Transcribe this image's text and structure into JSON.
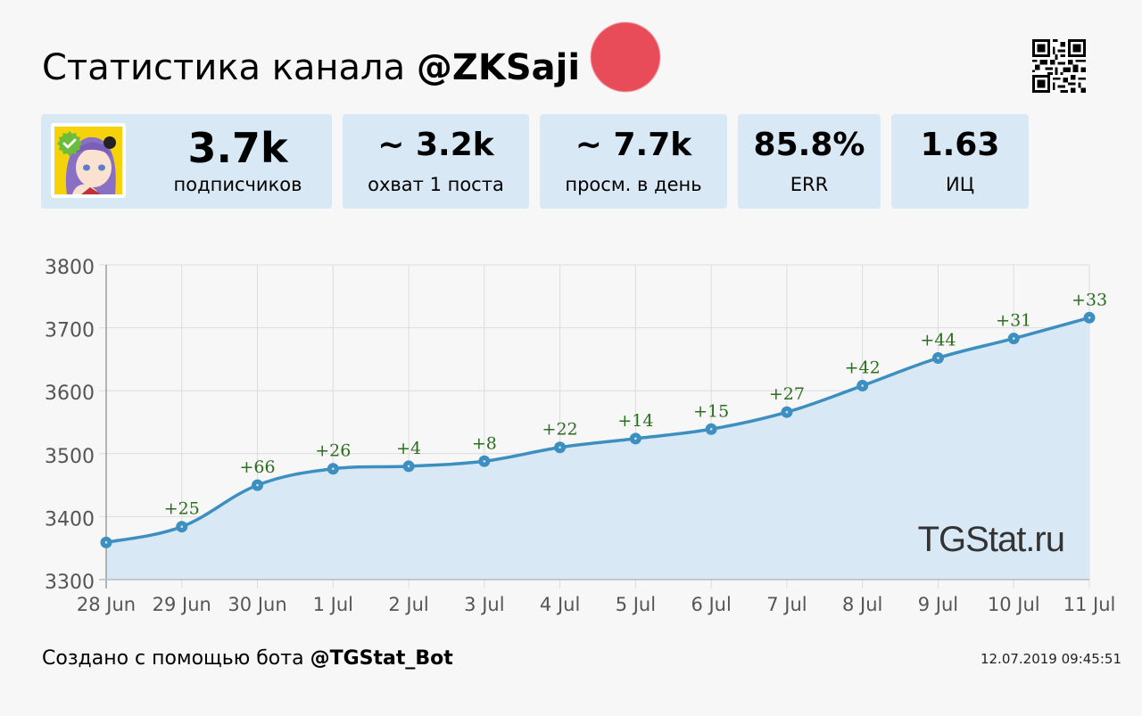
{
  "header": {
    "title_prefix": "Статистика канала ",
    "channel": "@ZKSaji",
    "qr_icon": "qr-code-icon"
  },
  "stats": [
    {
      "value": "3.7k",
      "label": "подписчиков"
    },
    {
      "value": "~ 3.2k",
      "label": "охват 1 поста"
    },
    {
      "value": "~ 7.7k",
      "label": "просм. в день"
    },
    {
      "value": "85.8%",
      "label": "ERR"
    },
    {
      "value": "1.63",
      "label": "ИЦ"
    }
  ],
  "colors": {
    "card_bg": "#d8e8f5",
    "line": "#3d8fc0",
    "area": "#d8e8f5",
    "delta_text": "#2a6e1e",
    "verified_badge": "#6cbd3c"
  },
  "chart_data": {
    "type": "area",
    "title": "",
    "xlabel": "",
    "ylabel": "",
    "ylim": [
      3300,
      3800
    ],
    "yticks": [
      "3800",
      "3700",
      "3600",
      "3500",
      "3400",
      "3300"
    ],
    "grid": true,
    "categories": [
      "28 Jun",
      "29 Jun",
      "30 Jun",
      "1 Jul",
      "2 Jul",
      "3 Jul",
      "4 Jul",
      "5 Jul",
      "6 Jul",
      "7 Jul",
      "8 Jul",
      "9 Jul",
      "10 Jul",
      "11 Jul"
    ],
    "series": [
      {
        "name": "subscribers",
        "values": [
          3359,
          3384,
          3450,
          3476,
          3480,
          3488,
          3510,
          3524,
          3539,
          3566,
          3608,
          3652,
          3683,
          3716
        ]
      }
    ],
    "annotations": [
      "",
      "+25",
      "+66",
      "+26",
      "+4",
      "+8",
      "+22",
      "+14",
      "+15",
      "+27",
      "+42",
      "+44",
      "+31",
      "+33"
    ],
    "watermark": "TGStat.ru"
  },
  "footer": {
    "created_prefix": "Создано с помощью бота ",
    "bot": "@TGStat_Bot",
    "timestamp": "12.07.2019 09:45:51"
  }
}
